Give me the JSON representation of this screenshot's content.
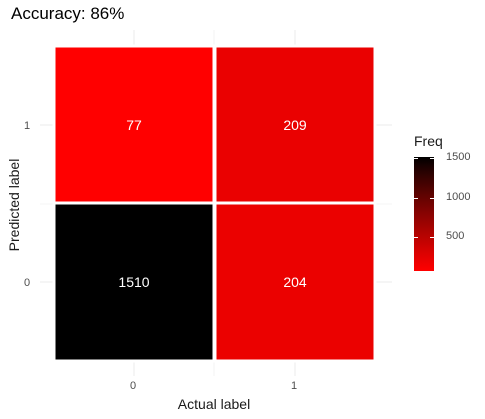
{
  "chart_data": {
    "type": "heatmap",
    "title": "Accuracy: 86%",
    "xlabel": "Actual label",
    "ylabel": "Predicted label",
    "x_categories": [
      "0",
      "1"
    ],
    "y_categories": [
      "0",
      "1"
    ],
    "cells": [
      {
        "actual": "0",
        "predicted": "1",
        "value": 77
      },
      {
        "actual": "1",
        "predicted": "1",
        "value": 209
      },
      {
        "actual": "0",
        "predicted": "0",
        "value": 1510
      },
      {
        "actual": "1",
        "predicted": "0",
        "value": 204
      }
    ],
    "legend": {
      "title": "Freq",
      "ticks": [
        500,
        1000,
        1500
      ],
      "range": [
        77,
        1510
      ],
      "colors": {
        "low": "#ff0000",
        "high": "#000000"
      }
    },
    "grid": true,
    "legend_position": "right"
  }
}
